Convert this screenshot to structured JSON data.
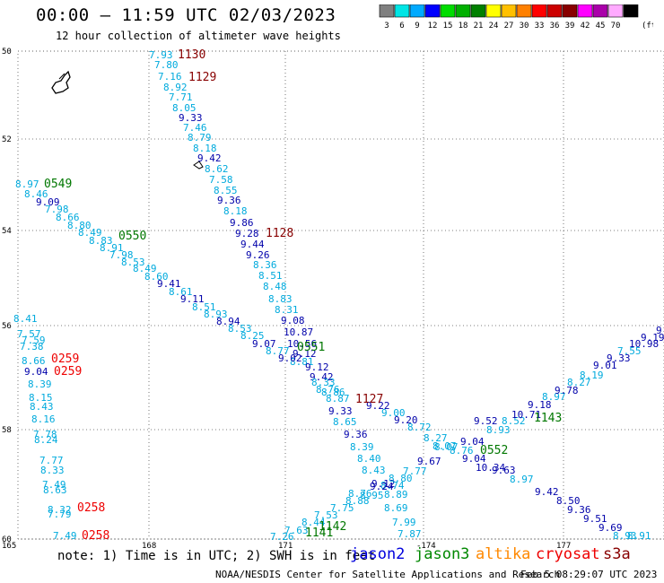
{
  "header": {
    "title": "00:00 – 11:59 UTC 02/03/2023",
    "subtitle": "12 hour collection of altimeter wave heights"
  },
  "legend": {
    "unit": "(ft)",
    "bins": [
      {
        "label": "3",
        "color": "#808080"
      },
      {
        "label": "6",
        "color": "#00e5e5"
      },
      {
        "label": "9",
        "color": "#00aaff"
      },
      {
        "label": "12",
        "color": "#0000ff"
      },
      {
        "label": "15",
        "color": "#00dd00"
      },
      {
        "label": "18",
        "color": "#00b000"
      },
      {
        "label": "21",
        "color": "#008000"
      },
      {
        "label": "24",
        "color": "#ffff00"
      },
      {
        "label": "27",
        "color": "#ffc000"
      },
      {
        "label": "30",
        "color": "#ff8000"
      },
      {
        "label": "33",
        "color": "#ff0000"
      },
      {
        "label": "36",
        "color": "#cc0000"
      },
      {
        "label": "39",
        "color": "#880000"
      },
      {
        "label": "42",
        "color": "#ff00ff"
      },
      {
        "label": "45",
        "color": "#aa00aa"
      },
      {
        "label": "70",
        "color": "#ffaaff"
      },
      {
        "label": "",
        "color": "#000000"
      }
    ]
  },
  "axes": {
    "lat_labels": [
      "50",
      "52",
      "54",
      "56",
      "58",
      "60"
    ],
    "lon_labels": [
      "165",
      "168",
      "171",
      "-174",
      "177"
    ]
  },
  "colors": {
    "light": "#00aadd",
    "dark": "#0000aa",
    "green": "#007700",
    "red": "#ee0000",
    "maroon": "#880000"
  },
  "tracks": {
    "t1": [
      {
        "t": "7.93",
        "c": "light"
      },
      {
        "t": "7.80",
        "c": "light"
      },
      {
        "t": "7.16",
        "c": "light"
      },
      {
        "t": "8.92",
        "c": "light"
      },
      {
        "t": "7.71",
        "c": "light"
      },
      {
        "t": "8.05",
        "c": "light"
      },
      {
        "t": "9.33",
        "c": "dark"
      },
      {
        "t": "7.46",
        "c": "light"
      },
      {
        "t": "8.79",
        "c": "light"
      },
      {
        "t": "8.18",
        "c": "light"
      },
      {
        "t": "9.42",
        "c": "dark"
      },
      {
        "t": "8.62",
        "c": "light"
      },
      {
        "t": "7.58",
        "c": "light"
      },
      {
        "t": "8.55",
        "c": "light"
      },
      {
        "t": "9.36",
        "c": "dark"
      },
      {
        "t": "8.18",
        "c": "light"
      },
      {
        "t": "9.86",
        "c": "dark"
      },
      {
        "t": "9.28",
        "c": "dark"
      },
      {
        "t": "9.44",
        "c": "dark"
      },
      {
        "t": "9.26",
        "c": "dark"
      },
      {
        "t": "8.36",
        "c": "light"
      },
      {
        "t": "8.51",
        "c": "light"
      },
      {
        "t": "8.48",
        "c": "light"
      },
      {
        "t": "8.83",
        "c": "light"
      },
      {
        "t": "8.31",
        "c": "light"
      },
      {
        "t": "9.08",
        "c": "dark"
      },
      {
        "t": "10.87",
        "c": "dark"
      },
      {
        "t": "10.56",
        "c": "dark"
      },
      {
        "t": "9.12",
        "c": "dark"
      },
      {
        "t": "8.81",
        "c": "light"
      },
      {
        "t": "9.12",
        "c": "dark"
      },
      {
        "t": "9.42",
        "c": "dark"
      },
      {
        "t": "8.33",
        "c": "light"
      },
      {
        "t": "8.76",
        "c": "light"
      },
      {
        "t": "8.86",
        "c": "light"
      },
      {
        "t": "8.87",
        "c": "light"
      },
      {
        "t": "9.22",
        "c": "dark"
      },
      {
        "t": "9.33",
        "c": "dark"
      },
      {
        "t": "9.00",
        "c": "light"
      },
      {
        "t": "8.65",
        "c": "light"
      },
      {
        "t": "9.20",
        "c": "dark"
      },
      {
        "t": "9.36",
        "c": "dark"
      },
      {
        "t": "8.72",
        "c": "light"
      },
      {
        "t": "8.39",
        "c": "light"
      },
      {
        "t": "8.27",
        "c": "light"
      },
      {
        "t": "8.40",
        "c": "light"
      },
      {
        "t": "8.07",
        "c": "light"
      },
      {
        "t": "8.43",
        "c": "light"
      },
      {
        "t": "9.12",
        "c": "dark"
      },
      {
        "t": "8.76",
        "c": "light"
      },
      {
        "t": "8.74",
        "c": "light"
      },
      {
        "t": "9.67",
        "c": "dark"
      },
      {
        "t": "8.89",
        "c": "light"
      },
      {
        "t": "9.04",
        "c": "dark"
      },
      {
        "t": "8.69",
        "c": "light"
      },
      {
        "t": "10.34",
        "c": "dark"
      },
      {
        "t": "7.99",
        "c": "light"
      },
      {
        "t": "9.63",
        "c": "dark"
      },
      {
        "t": "7.87",
        "c": "light"
      },
      {
        "t": "8.97",
        "c": "light"
      },
      {
        "t": "9.42",
        "c": "dark"
      },
      {
        "t": "8.50",
        "c": "dark"
      },
      {
        "t": "9.36",
        "c": "dark"
      },
      {
        "t": "9.51",
        "c": "dark"
      },
      {
        "t": "9.69",
        "c": "dark"
      },
      {
        "t": "8.93",
        "c": "light"
      },
      {
        "t": "8.91",
        "c": "light"
      }
    ],
    "t2": [
      {
        "t": "8.97",
        "c": "light"
      },
      {
        "t": "8.46",
        "c": "light"
      },
      {
        "t": "9.09",
        "c": "dark"
      },
      {
        "t": "7.98",
        "c": "light"
      },
      {
        "t": "8.66",
        "c": "light"
      },
      {
        "t": "8.80",
        "c": "light"
      },
      {
        "t": "8.49",
        "c": "light"
      },
      {
        "t": "8.83",
        "c": "light"
      },
      {
        "t": "8.91",
        "c": "light"
      },
      {
        "t": "7.98",
        "c": "light"
      },
      {
        "t": "8.53",
        "c": "light"
      },
      {
        "t": "8.49",
        "c": "light"
      },
      {
        "t": "8.60",
        "c": "light"
      },
      {
        "t": "9.41",
        "c": "dark"
      },
      {
        "t": "8.61",
        "c": "light"
      },
      {
        "t": "9.11",
        "c": "dark"
      },
      {
        "t": "8.51",
        "c": "light"
      },
      {
        "t": "8.93",
        "c": "light"
      },
      {
        "t": "8.94",
        "c": "dark"
      },
      {
        "t": "8.53",
        "c": "light"
      },
      {
        "t": "8.25",
        "c": "light"
      },
      {
        "t": "9.07",
        "c": "dark"
      },
      {
        "t": "8.77",
        "c": "light"
      },
      {
        "t": "9.02",
        "c": "dark"
      }
    ],
    "t3": [
      {
        "t": "7.26",
        "c": "light"
      },
      {
        "t": "7.63",
        "c": "light"
      },
      {
        "t": "8.44",
        "c": "light"
      },
      {
        "t": "7.53",
        "c": "light"
      },
      {
        "t": "7.75",
        "c": "light"
      },
      {
        "t": "8.88",
        "c": "light"
      },
      {
        "t": "8.95",
        "c": "light"
      },
      {
        "t": "9.24",
        "c": "dark"
      },
      {
        "t": "8.80",
        "c": "light"
      },
      {
        "t": "7.77",
        "c": "light"
      },
      {
        "t": "8.07",
        "c": "light"
      },
      {
        "t": "8.76",
        "c": "light"
      },
      {
        "t": "9.04",
        "c": "dark"
      },
      {
        "t": "8.93",
        "c": "light"
      },
      {
        "t": "9.52",
        "c": "dark"
      },
      {
        "t": "8.52",
        "c": "light"
      },
      {
        "t": "10.71",
        "c": "dark"
      },
      {
        "t": "9.18",
        "c": "dark"
      },
      {
        "t": "8.97",
        "c": "light"
      },
      {
        "t": "9.78",
        "c": "dark"
      },
      {
        "t": "8.27",
        "c": "light"
      },
      {
        "t": "8.19",
        "c": "light"
      },
      {
        "t": "9.01",
        "c": "dark"
      },
      {
        "t": "9.33",
        "c": "dark"
      },
      {
        "t": "7.55",
        "c": "light"
      },
      {
        "t": "10.98",
        "c": "dark"
      },
      {
        "t": "9.19",
        "c": "dark"
      },
      {
        "t": "9",
        "c": "dark"
      }
    ],
    "t4": [
      {
        "t": "8.41",
        "c": "light"
      },
      {
        "t": "7.57",
        "c": "light"
      },
      {
        "t": "7.59",
        "c": "light"
      },
      {
        "t": "7.38",
        "c": "light"
      },
      {
        "t": "8.66",
        "c": "light"
      },
      {
        "t": "9.04",
        "c": "dark"
      },
      {
        "t": "8.39",
        "c": "light"
      },
      {
        "t": "8.15",
        "c": "light"
      },
      {
        "t": "8.43",
        "c": "light"
      },
      {
        "t": "8.16",
        "c": "light"
      },
      {
        "t": "7.78",
        "c": "light"
      },
      {
        "t": "8.24",
        "c": "light"
      },
      {
        "t": "7.77",
        "c": "light"
      },
      {
        "t": "8.33",
        "c": "light"
      },
      {
        "t": "7.49",
        "c": "light"
      },
      {
        "t": "8.63",
        "c": "light"
      },
      {
        "t": "8.32",
        "c": "light"
      },
      {
        "t": "7.79",
        "c": "light"
      },
      {
        "t": "7.49",
        "c": "light"
      }
    ]
  },
  "times": [
    {
      "t": "1130",
      "c": "maroon"
    },
    {
      "t": "1129",
      "c": "maroon"
    },
    {
      "t": "1128",
      "c": "maroon"
    },
    {
      "t": "1127",
      "c": "maroon"
    },
    {
      "t": "0549",
      "c": "green"
    },
    {
      "t": "0550",
      "c": "green"
    },
    {
      "t": "0551",
      "c": "green"
    },
    {
      "t": "0552",
      "c": "green"
    },
    {
      "t": "1143",
      "c": "green"
    },
    {
      "t": "1142",
      "c": "green"
    },
    {
      "t": "1141",
      "c": "green"
    },
    {
      "t": "0259",
      "c": "red"
    },
    {
      "t": "0259",
      "c": "red"
    },
    {
      "t": "0258",
      "c": "red"
    },
    {
      "t": "0258",
      "c": "red"
    }
  ],
  "footer": {
    "note": "note: 1) Time is in UTC; 2) SWH is in feet",
    "satellites": [
      {
        "name": "jason2",
        "color": "#0000dd"
      },
      {
        "name": "jason3",
        "color": "#008800"
      },
      {
        "name": "altika",
        "color": "#ff8800"
      },
      {
        "name": "cryosat",
        "color": "#ee0000"
      },
      {
        "name": "s3a",
        "color": "#880000"
      }
    ],
    "credit": "NOAA/NESDIS Center for Satellite Applications and Research",
    "timestamp": "Feb  5 08:29:07 UTC 2023"
  }
}
